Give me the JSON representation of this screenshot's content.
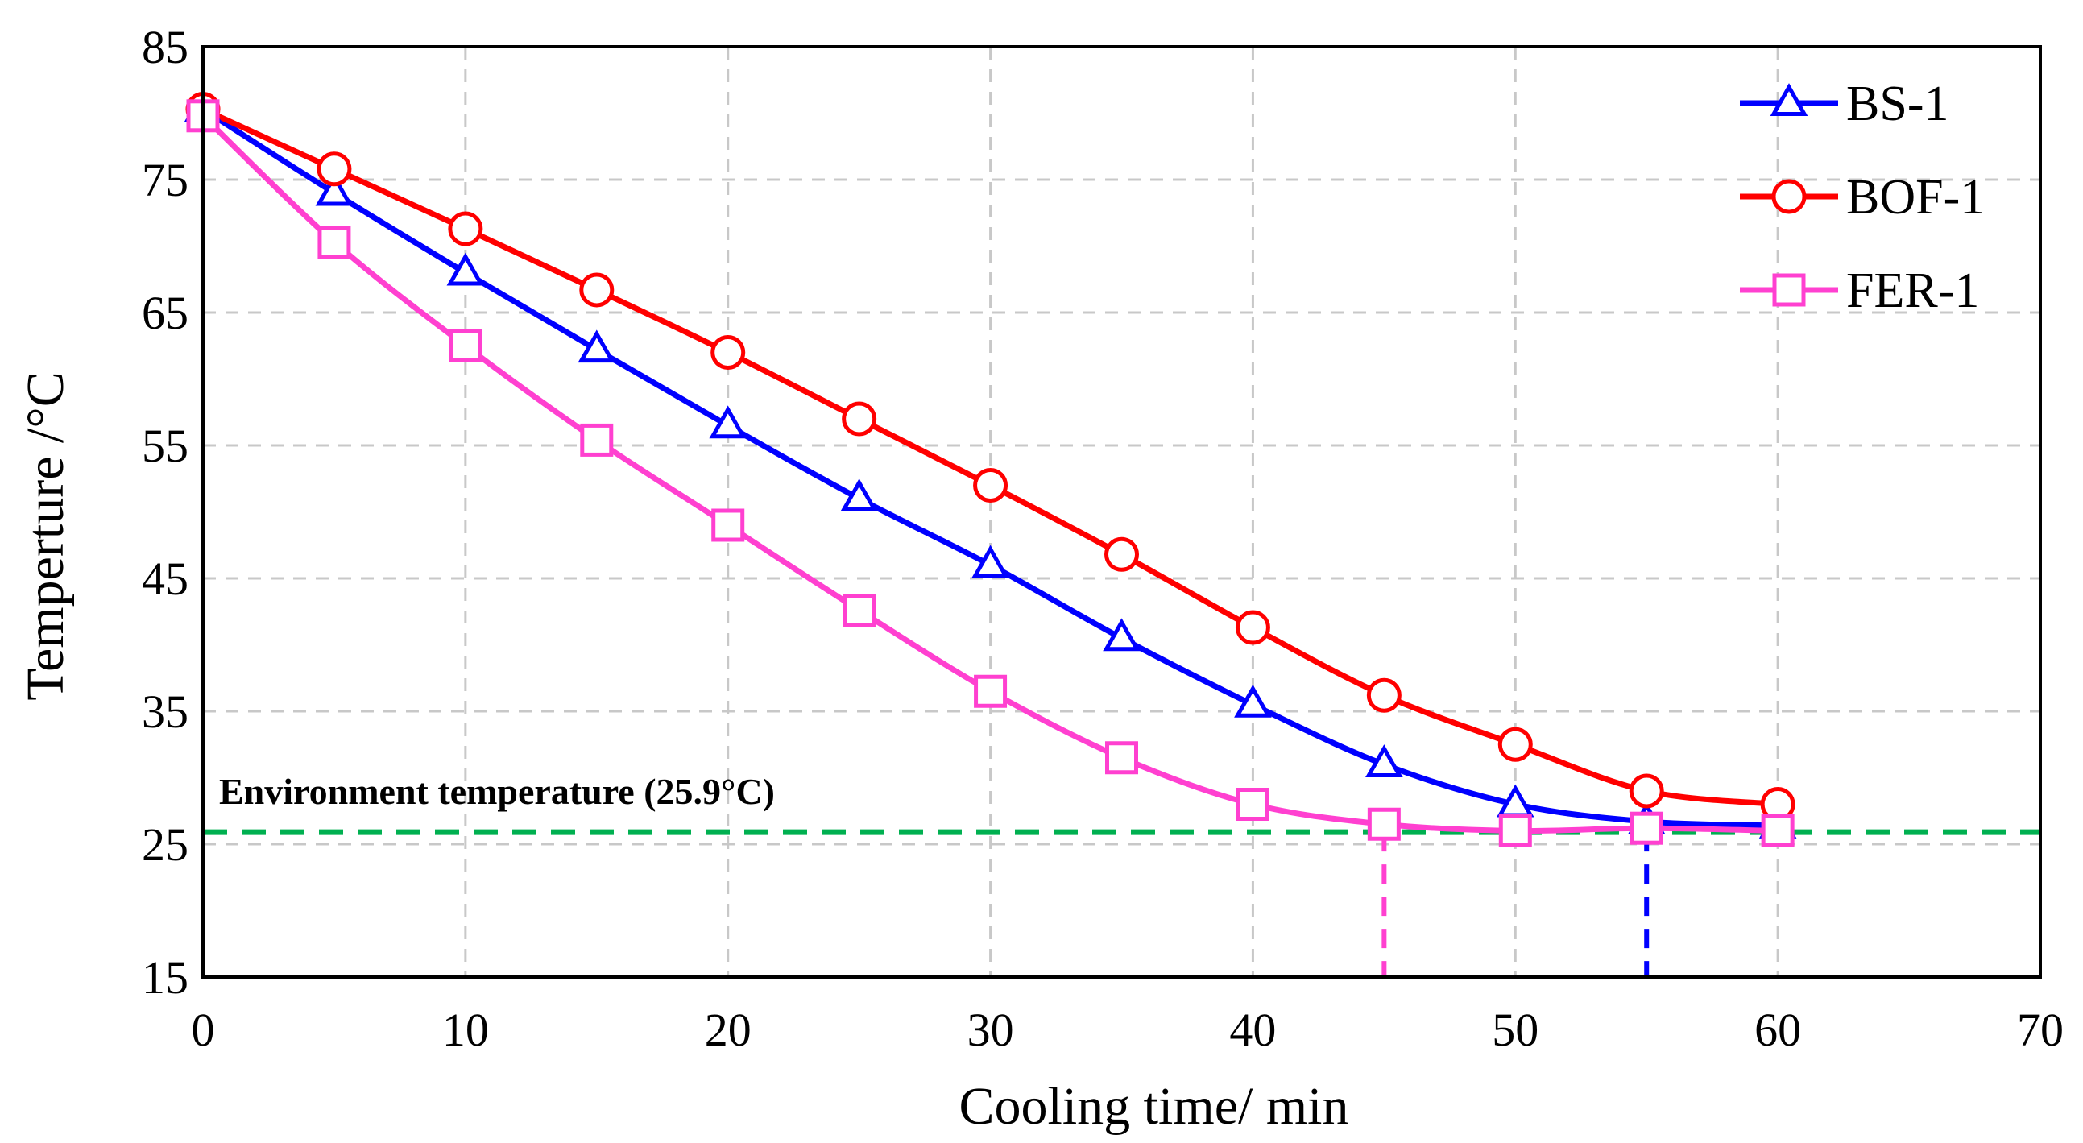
{
  "chart_data": {
    "type": "line",
    "title": "",
    "xlabel": "Cooling time/ min",
    "ylabel": "Temperture /°C",
    "xlim": [
      0,
      70
    ],
    "ylim": [
      15,
      85
    ],
    "xticks": [
      0,
      10,
      20,
      30,
      40,
      50,
      60,
      70
    ],
    "yticks": [
      15,
      25,
      35,
      45,
      55,
      65,
      75,
      85
    ],
    "grid": true,
    "legend_position": "top-right",
    "x": [
      0,
      5,
      10,
      15,
      20,
      25,
      30,
      35,
      40,
      45,
      50,
      55,
      60
    ],
    "series": [
      {
        "name": "BS-1",
        "color": "#0000ff",
        "marker": "triangle",
        "values": [
          80.3,
          74.0,
          68.0,
          62.2,
          56.5,
          51.0,
          46.0,
          40.5,
          35.5,
          31.0,
          28.0,
          26.7,
          26.4
        ]
      },
      {
        "name": "BOF-1",
        "color": "#ff0000",
        "marker": "circle",
        "values": [
          80.3,
          75.8,
          71.3,
          66.7,
          62.0,
          57.0,
          52.0,
          46.8,
          41.3,
          36.2,
          32.5,
          29.0,
          28.0
        ]
      },
      {
        "name": "FER-1",
        "color": "#ff40d0",
        "marker": "square",
        "values": [
          79.8,
          70.3,
          62.5,
          55.4,
          49.0,
          42.6,
          36.5,
          31.5,
          28.0,
          26.5,
          26.0,
          26.2,
          26.0
        ]
      }
    ],
    "reference_line": {
      "label": "Environment temperature (25.9°C)",
      "y": 25.9,
      "color": "#00b050"
    },
    "vertical_markers": [
      {
        "x": 45,
        "y_top": 25.9,
        "color": "#ff40d0"
      },
      {
        "x": 55,
        "y_top": 25.9,
        "color": "#0000ff"
      }
    ]
  }
}
